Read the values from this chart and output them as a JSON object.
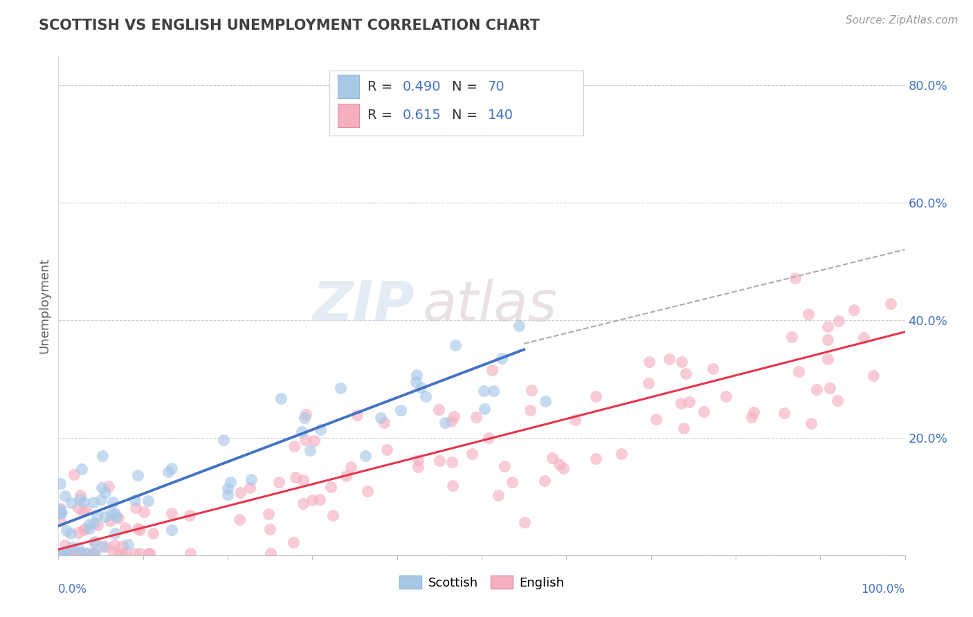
{
  "title": "SCOTTISH VS ENGLISH UNEMPLOYMENT CORRELATION CHART",
  "source": "Source: ZipAtlas.com",
  "ylabel": "Unemployment",
  "watermark_zip": "ZIP",
  "watermark_atlas": "atlas",
  "legend_r1": "R = ",
  "legend_v1": "0.490",
  "legend_n1_label": "N = ",
  "legend_n1_val": " 70",
  "legend_r2": "R = ",
  "legend_v2": "0.615",
  "legend_n2_label": "N = ",
  "legend_n2_val": "140",
  "scottish_color": "#a8c8e8",
  "english_color": "#f5b0c0",
  "scottish_line_color": "#4472c4",
  "english_line_color": "#e8344a",
  "dashed_line_color": "#aaaaaa",
  "background_color": "#ffffff",
  "grid_color": "#c8c8c8",
  "title_color": "#404040",
  "axis_label_color": "#4472c4",
  "ytick_labels": [
    "",
    "20.0%",
    "40.0%",
    "60.0%",
    "80.0%"
  ],
  "figsize": [
    14.06,
    8.92
  ],
  "dpi": 100
}
